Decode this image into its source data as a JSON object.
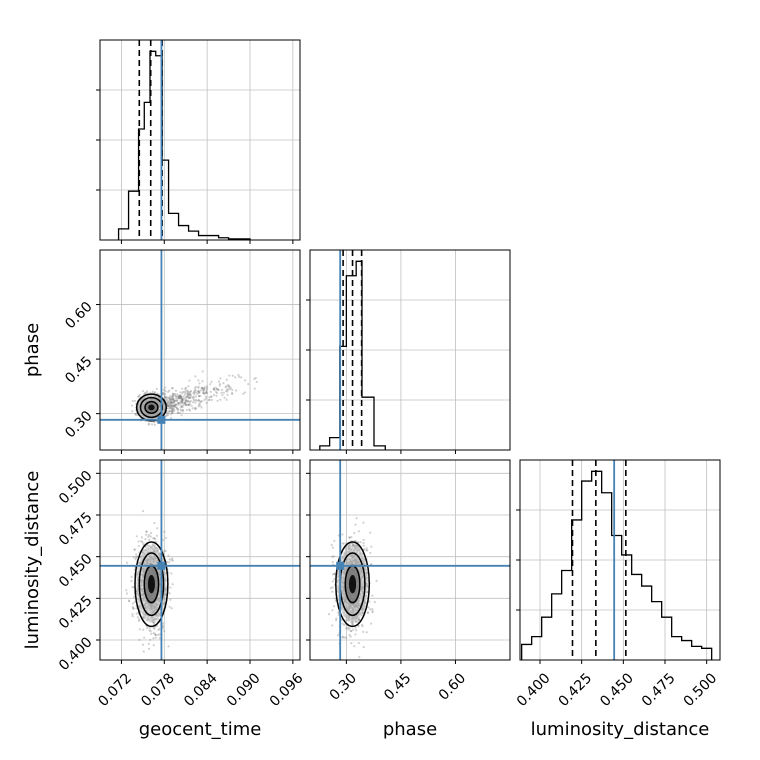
{
  "chart_data": {
    "type": "corner",
    "parameters": [
      "geocent_time",
      "phase",
      "luminosity_distance"
    ],
    "colors": {
      "truth": "#4682b4",
      "histogram": "#000000",
      "grid": "#c0c0c0",
      "scatter": "#7a7a7a"
    },
    "grid": true,
    "geocent_time": {
      "xlabel": "geocent_time",
      "range": [
        0.069,
        0.097
      ],
      "ticks": [
        0.072,
        0.078,
        0.084,
        0.09,
        0.096
      ],
      "tick_labels": [
        "0.072",
        "0.078",
        "0.084",
        "0.090",
        "0.096"
      ],
      "truth": 0.0776,
      "quantiles": [
        0.0745,
        0.0761,
        0.0777
      ],
      "bin_edges": [
        0.0716,
        0.073,
        0.0744,
        0.0752,
        0.076,
        0.0768,
        0.0777,
        0.0786,
        0.08,
        0.0814,
        0.0828,
        0.0842,
        0.0856,
        0.087,
        0.09
      ],
      "counts": [
        0.1,
        0.44,
        1.0,
        1.24,
        1.7,
        1.66,
        0.72,
        0.24,
        0.13,
        0.08,
        0.04,
        0.04,
        0.02,
        0.01
      ]
    },
    "phase": {
      "xlabel": "phase",
      "ylabel": "phase",
      "range": [
        0.2,
        0.75
      ],
      "ticks": [
        0.3,
        0.45,
        0.6
      ],
      "tick_labels": [
        "0.30",
        "0.45",
        "0.60"
      ],
      "truth": 0.283,
      "quantiles": [
        0.291,
        0.317,
        0.342
      ],
      "bin_edges": [
        0.227,
        0.254,
        0.282,
        0.3,
        0.327,
        0.343,
        0.376,
        0.407
      ],
      "counts": [
        0.06,
        0.18,
        1.51,
        2.54,
        2.75,
        0.77,
        0.06
      ]
    },
    "luminosity_distance": {
      "xlabel": "luminosity_distance",
      "ylabel": "luminosity_distance",
      "range": [
        0.388,
        0.508
      ],
      "ticks": [
        0.4,
        0.425,
        0.45,
        0.475,
        0.5
      ],
      "tick_labels": [
        "0.400",
        "0.425",
        "0.450",
        "0.475",
        "0.500"
      ],
      "truth": 0.4445,
      "quantiles": [
        0.4195,
        0.4335,
        0.4515
      ],
      "bin_edges": [
        0.389,
        0.395,
        0.401,
        0.407,
        0.413,
        0.419,
        0.425,
        0.431,
        0.437,
        0.443,
        0.449,
        0.455,
        0.461,
        0.467,
        0.473,
        0.479,
        0.485,
        0.491,
        0.497,
        0.503
      ],
      "counts": [
        0.08,
        0.12,
        0.22,
        0.34,
        0.46,
        0.72,
        0.92,
        0.97,
        0.86,
        0.64,
        0.54,
        0.44,
        0.38,
        0.3,
        0.22,
        0.12,
        0.1,
        0.07,
        0.06
      ]
    },
    "density_peaks": {
      "geocent_time_vs_phase": {
        "x": 0.0762,
        "y": 0.317,
        "sx": 0.0009,
        "sy": 0.016
      },
      "geocent_time_vs_luminosity_distance": {
        "x": 0.0762,
        "y": 0.4335,
        "sx": 0.001,
        "sy": 0.011
      },
      "phase_vs_luminosity_distance": {
        "x": 0.317,
        "y": 0.4335,
        "sx": 0.02,
        "sy": 0.011
      }
    }
  }
}
